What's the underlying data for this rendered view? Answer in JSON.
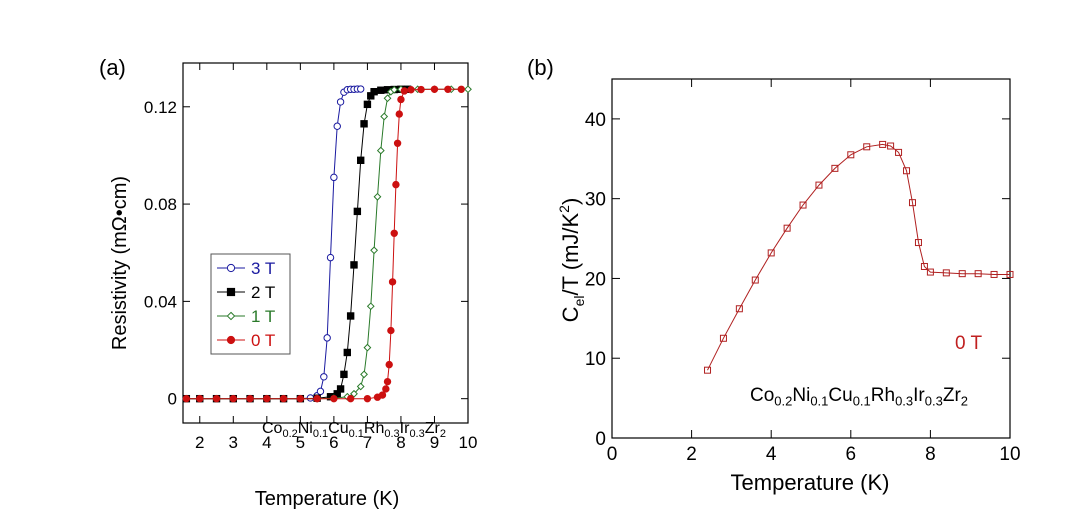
{
  "colors": {
    "series_3T": "#1a1aa0",
    "series_2T": "#000000",
    "series_1T": "#2a7a2a",
    "series_0T": "#cc1010",
    "panel_b": "#b02020",
    "axis": "#000000"
  },
  "chart_data": [
    {
      "panel": "(a)",
      "type": "line",
      "xlabel": "Temperature (K)",
      "ylabel": "Resistivity (mΩ•cm)",
      "xlim": [
        1.5,
        10
      ],
      "ylim": [
        -0.01,
        0.138
      ],
      "xticks": [
        2,
        3,
        4,
        5,
        6,
        7,
        8,
        9,
        10
      ],
      "yticks": [
        0,
        0.04,
        0.08,
        0.12
      ],
      "ytick_labels": [
        "0",
        "0.04",
        "0.08",
        "0.12"
      ],
      "legend_position": "left-center",
      "annotation": {
        "formula": [
          {
            "base": "Co",
            "sub": "0.2"
          },
          {
            "base": "Ni",
            "sub": "0.1"
          },
          {
            "base": "Cu",
            "sub": "0.1"
          },
          {
            "base": "Rh",
            "sub": "0.3"
          },
          {
            "base": "Ir",
            "sub": "0.3"
          },
          {
            "base": "Zr",
            "sub": "2"
          }
        ],
        "position": "bottom-right"
      },
      "series": [
        {
          "name": "3 T",
          "marker": "open-circle",
          "color_key": "series_3T",
          "x": [
            1.6,
            2.0,
            2.5,
            3.0,
            3.5,
            4.0,
            4.5,
            5.0,
            5.3,
            5.5,
            5.6,
            5.7,
            5.8,
            5.9,
            6.0,
            6.1,
            6.2,
            6.3,
            6.4,
            6.5,
            6.6,
            6.7,
            6.8
          ],
          "y": [
            0,
            0,
            0,
            0,
            0,
            0,
            0,
            0,
            0.0003,
            0.0012,
            0.003,
            0.009,
            0.025,
            0.058,
            0.091,
            0.112,
            0.122,
            0.126,
            0.127,
            0.1272,
            0.1272,
            0.1273,
            0.1273
          ]
        },
        {
          "name": "2 T",
          "marker": "filled-square",
          "color_key": "series_2T",
          "x": [
            1.6,
            2.0,
            2.5,
            3.0,
            3.5,
            4.0,
            4.5,
            5.0,
            5.5,
            5.9,
            6.1,
            6.2,
            6.3,
            6.4,
            6.5,
            6.6,
            6.7,
            6.8,
            6.9,
            7.0,
            7.1,
            7.2,
            7.4,
            7.6,
            7.8,
            8.0,
            8.2
          ],
          "y": [
            0,
            0,
            0,
            0,
            0,
            0,
            0,
            0,
            0.0002,
            0.0008,
            0.002,
            0.004,
            0.01,
            0.019,
            0.034,
            0.055,
            0.077,
            0.098,
            0.113,
            0.121,
            0.1245,
            0.1262,
            0.1268,
            0.127,
            0.1271,
            0.1272,
            0.1272
          ]
        },
        {
          "name": "1 T",
          "marker": "open-diamond",
          "color_key": "series_1T",
          "x": [
            1.6,
            2.0,
            2.5,
            3.0,
            3.5,
            4.0,
            4.5,
            5.0,
            5.5,
            6.0,
            6.4,
            6.6,
            6.8,
            6.9,
            7.0,
            7.1,
            7.2,
            7.3,
            7.4,
            7.5,
            7.6,
            7.7,
            7.8,
            8.0,
            8.5,
            9.0,
            9.5,
            10.0
          ],
          "y": [
            0,
            0,
            0,
            0,
            0,
            0,
            0,
            0,
            0,
            0.0002,
            0.0008,
            0.002,
            0.005,
            0.01,
            0.021,
            0.038,
            0.061,
            0.083,
            0.102,
            0.116,
            0.1235,
            0.1262,
            0.127,
            0.1272,
            0.1272,
            0.1272,
            0.1272,
            0.1272
          ]
        },
        {
          "name": "0 T",
          "marker": "filled-circle",
          "color_key": "series_0T",
          "x": [
            1.6,
            2.0,
            2.5,
            3.0,
            3.5,
            4.0,
            4.5,
            5.0,
            5.5,
            6.0,
            6.5,
            7.0,
            7.3,
            7.45,
            7.55,
            7.6,
            7.65,
            7.7,
            7.75,
            7.8,
            7.85,
            7.9,
            7.95,
            8.0,
            8.1,
            8.3,
            8.6,
            9.0,
            9.4,
            9.8
          ],
          "y": [
            0,
            0,
            0,
            0,
            0,
            0,
            0,
            0,
            0,
            0,
            0,
            0,
            0.0006,
            0.0015,
            0.004,
            0.007,
            0.014,
            0.028,
            0.048,
            0.068,
            0.088,
            0.105,
            0.117,
            0.123,
            0.1265,
            0.127,
            0.1271,
            0.1272,
            0.1272,
            0.1272
          ]
        }
      ]
    },
    {
      "panel": "(b)",
      "type": "scatter",
      "xlabel": "Temperature (K)",
      "ylabel": {
        "base": "C",
        "sub": "el",
        "mid": "/T (mJ/K",
        "sup": "2",
        "end": ")"
      },
      "xlim": [
        0,
        10
      ],
      "ylim": [
        0,
        45
      ],
      "xticks": [
        0,
        2,
        4,
        6,
        8,
        10
      ],
      "yticks": [
        0,
        10,
        20,
        30,
        40
      ],
      "field_label": "0 T",
      "annotation": {
        "formula": [
          {
            "base": "Co",
            "sub": "0.2"
          },
          {
            "base": "Ni",
            "sub": "0.1"
          },
          {
            "base": "Cu",
            "sub": "0.1"
          },
          {
            "base": "Rh",
            "sub": "0.3"
          },
          {
            "base": "Ir",
            "sub": "0.3"
          },
          {
            "base": "Zr",
            "sub": "2"
          }
        ],
        "position": "bottom-right"
      },
      "series": [
        {
          "marker": "open-square",
          "color_key": "panel_b",
          "x": [
            2.4,
            2.8,
            3.2,
            3.6,
            4.0,
            4.4,
            4.8,
            5.2,
            5.6,
            6.0,
            6.4,
            6.8,
            7.0,
            7.2,
            7.4,
            7.55,
            7.7,
            7.85,
            8.0,
            8.4,
            8.8,
            9.2,
            9.6,
            10.0
          ],
          "y": [
            8.5,
            12.5,
            16.2,
            19.8,
            23.2,
            26.3,
            29.2,
            31.7,
            33.8,
            35.5,
            36.5,
            36.8,
            36.6,
            35.8,
            33.5,
            29.5,
            24.5,
            21.5,
            20.8,
            20.7,
            20.6,
            20.6,
            20.5,
            20.5
          ]
        }
      ]
    }
  ]
}
